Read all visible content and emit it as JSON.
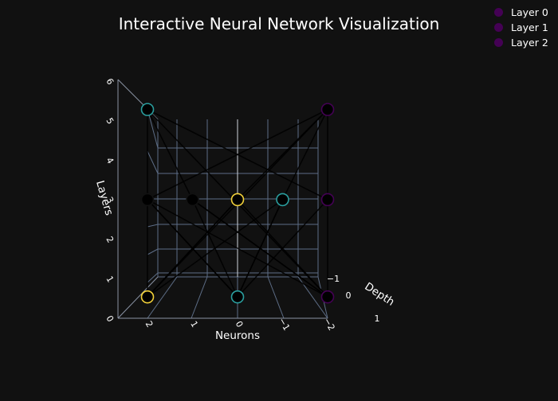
{
  "chart_data": {
    "type": "scatter",
    "title": "Interactive Neural Network Visualization",
    "xlabel": "Neurons",
    "ylabel": "Depth",
    "zlabel": "Layers",
    "xlim": [
      -2,
      2
    ],
    "ylim": [
      -1,
      1
    ],
    "zlim": [
      0,
      6
    ],
    "x_ticks": [
      "2",
      "1",
      "0",
      "−1",
      "−2"
    ],
    "y_ticks": [
      "−1",
      "0",
      "1"
    ],
    "z_ticks": [
      "0",
      "1",
      "2",
      "3",
      "4",
      "5",
      "6"
    ],
    "grid": true,
    "legend_position": "top-right",
    "series": [
      {
        "name": "Layer 0",
        "color": "#440154",
        "points": [
          {
            "x": -2,
            "z": 0.6,
            "marker": "#f2d13a"
          },
          {
            "x": 0,
            "z": 0.6,
            "marker": "#2a9e9e"
          },
          {
            "x": 2,
            "z": 0.6,
            "marker": "#440154"
          }
        ]
      },
      {
        "name": "Layer 1",
        "color": "#440154",
        "points": [
          {
            "x": -2,
            "z": 3,
            "marker": "#111111"
          },
          {
            "x": -1,
            "z": 3,
            "marker": "#111111"
          },
          {
            "x": 0,
            "z": 3,
            "marker": "#f2d13a"
          },
          {
            "x": 1,
            "z": 3,
            "marker": "#2a9e9e"
          },
          {
            "x": 2,
            "z": 3,
            "marker": "#440154"
          }
        ]
      },
      {
        "name": "Layer 2",
        "color": "#440154",
        "points": [
          {
            "x": -2,
            "z": 5.4,
            "marker": "#2a9e9e"
          },
          {
            "x": 2,
            "z": 5.4,
            "marker": "#440154"
          }
        ]
      }
    ],
    "edges": [
      [
        0,
        0,
        1,
        0
      ],
      [
        0,
        0,
        1,
        2
      ],
      [
        0,
        0,
        1,
        3
      ],
      [
        0,
        1,
        1,
        0
      ],
      [
        0,
        1,
        1,
        1
      ],
      [
        0,
        1,
        1,
        3
      ],
      [
        0,
        1,
        1,
        4
      ],
      [
        0,
        2,
        1,
        1
      ],
      [
        0,
        2,
        1,
        2
      ],
      [
        0,
        2,
        1,
        4
      ],
      [
        1,
        0,
        0,
        1
      ],
      [
        1,
        0,
        0,
        2
      ],
      [
        1,
        1,
        0,
        2
      ],
      [
        1,
        2,
        0,
        0
      ],
      [
        1,
        3,
        0,
        1
      ],
      [
        1,
        0,
        2,
        0
      ],
      [
        1,
        1,
        2,
        0
      ],
      [
        1,
        2,
        2,
        1
      ],
      [
        1,
        4,
        2,
        1
      ],
      [
        1,
        3,
        2,
        1
      ],
      [
        2,
        0,
        1,
        4
      ],
      [
        2,
        0,
        0,
        2
      ],
      [
        2,
        1,
        0,
        0
      ],
      [
        2,
        1,
        1,
        0
      ]
    ]
  }
}
